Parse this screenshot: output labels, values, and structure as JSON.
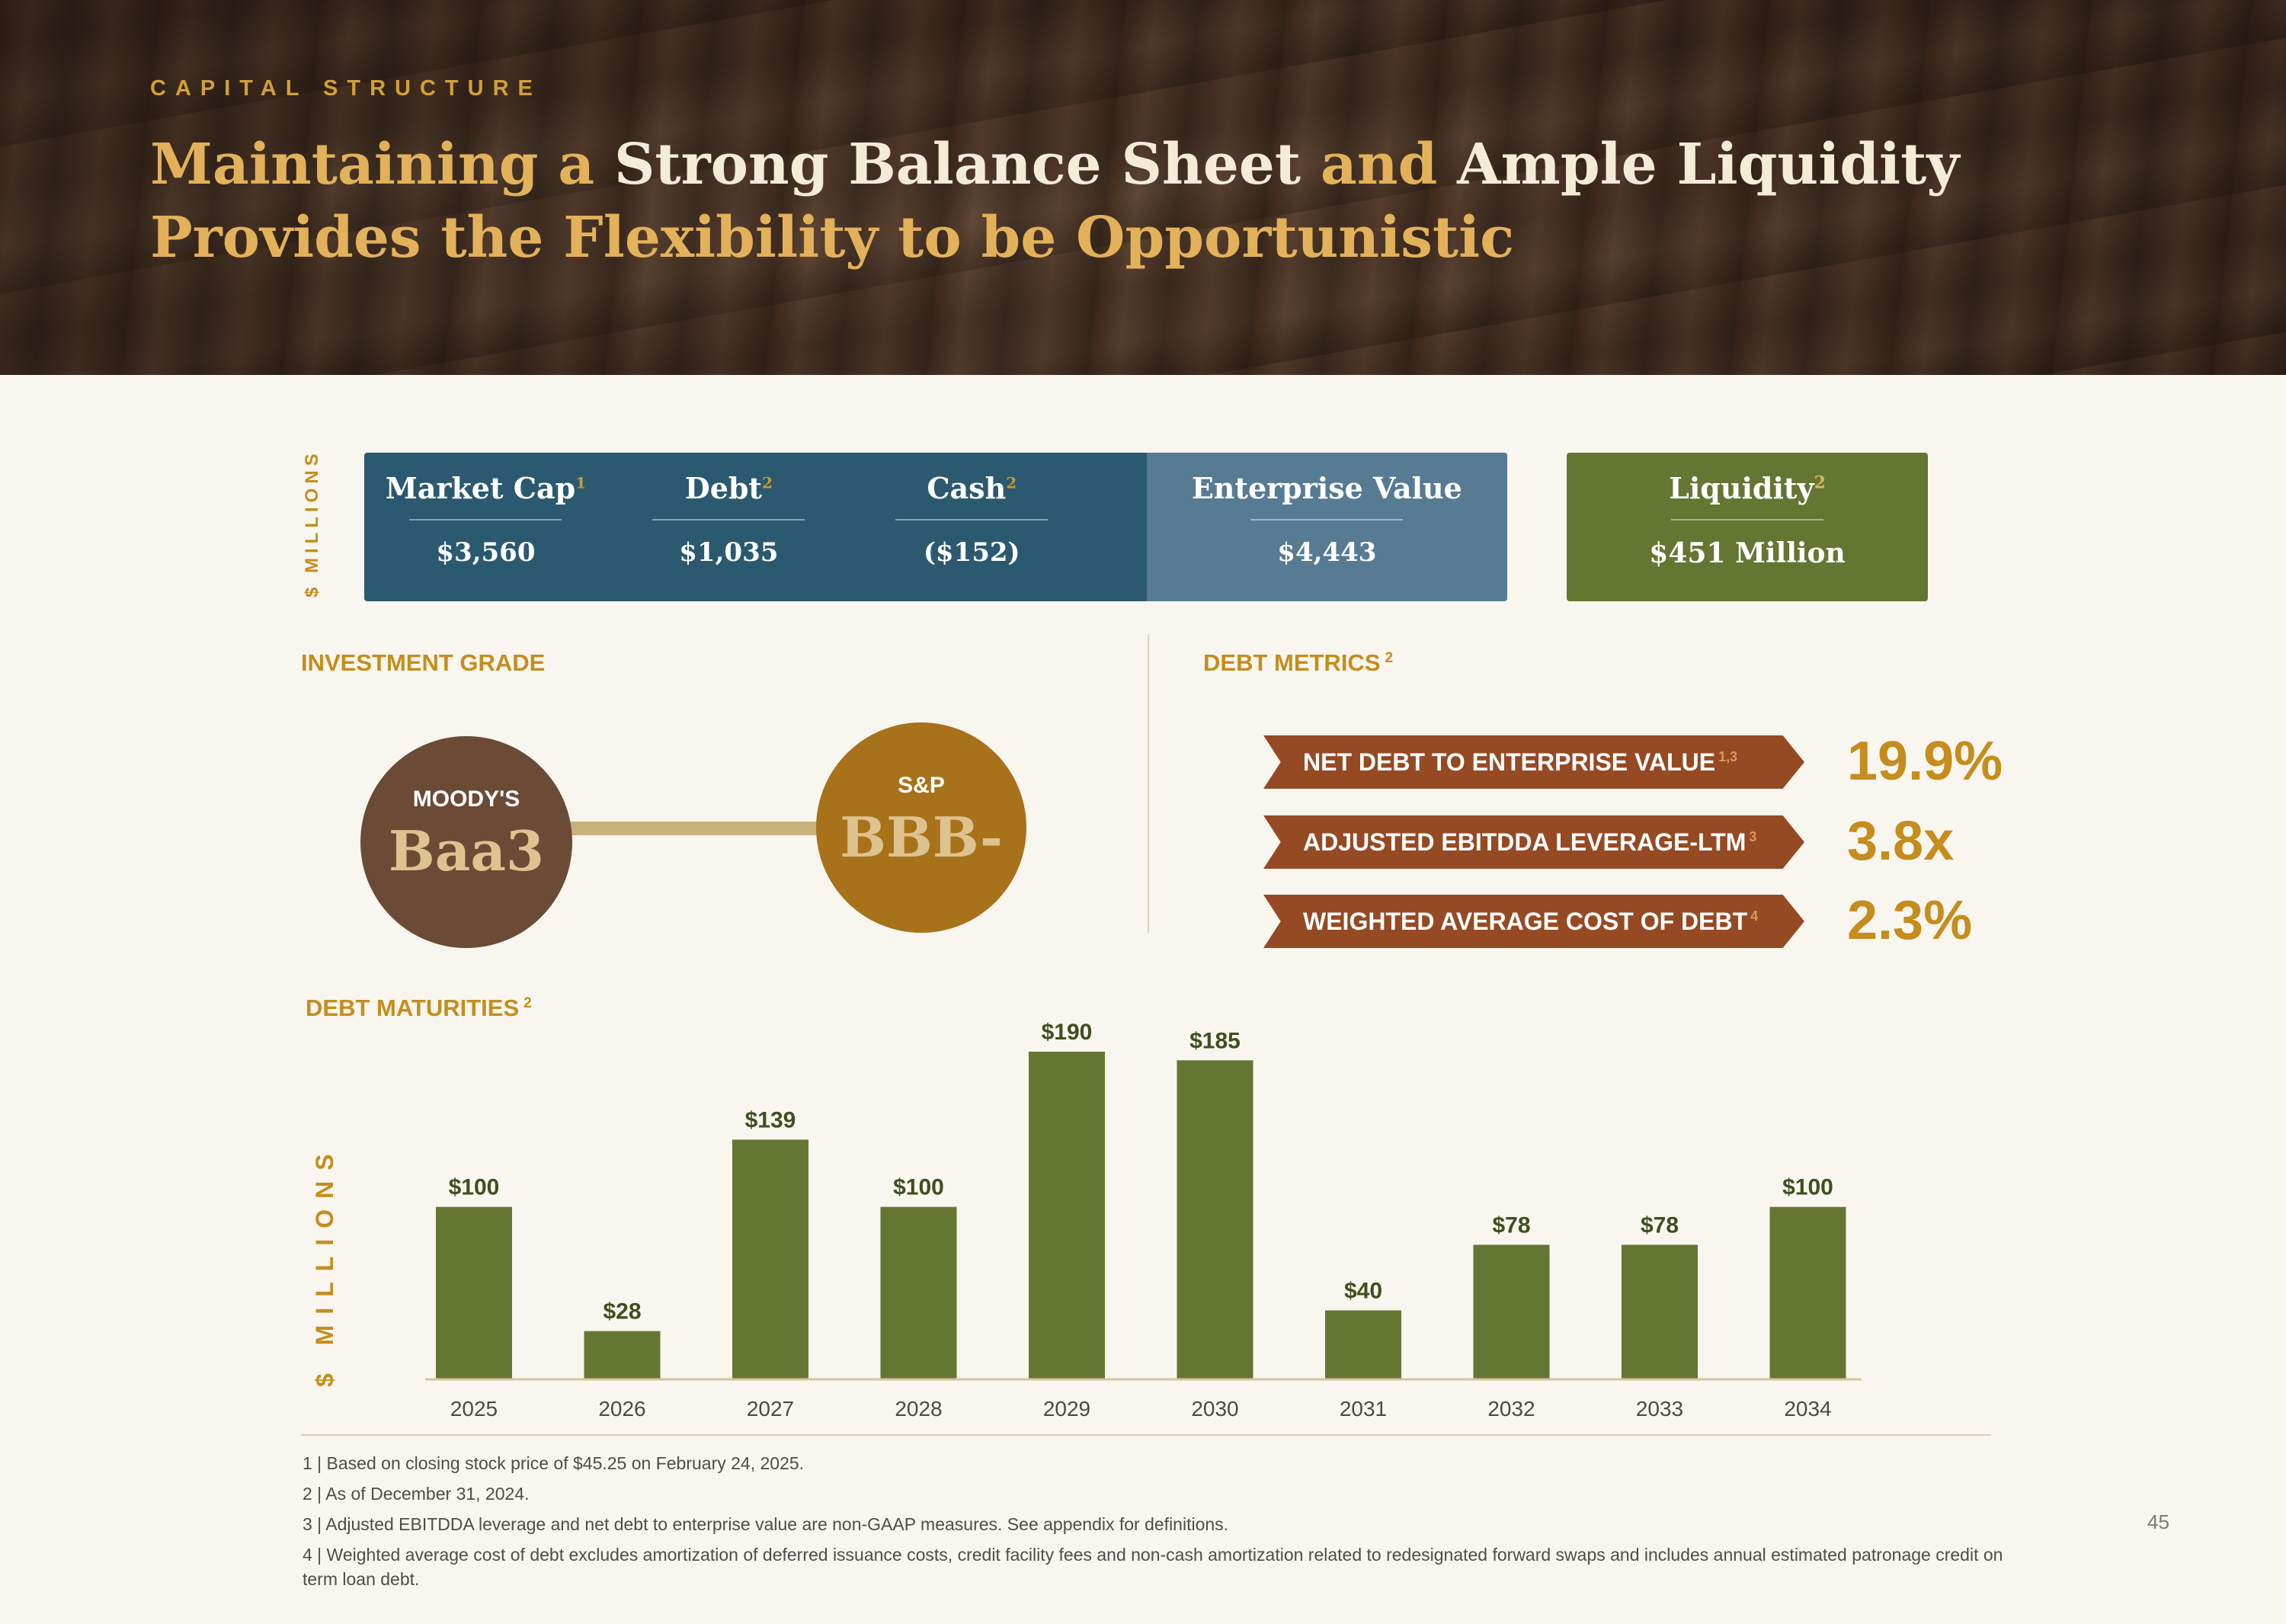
{
  "header": {
    "eyebrow": "CAPITAL STRUCTURE",
    "title_parts": [
      {
        "text": "Maintaining a ",
        "highlight": false
      },
      {
        "text": "Strong Balance Sheet",
        "highlight": true
      },
      {
        "text": " and ",
        "highlight": false
      },
      {
        "text": "Ample Liquidity",
        "highlight": true
      },
      {
        "text": " Provides the Flexibility to be Opportunistic",
        "highlight": false
      }
    ]
  },
  "metrics": {
    "unit_label": "$ MILLIONS",
    "items": [
      {
        "label": "Market Cap",
        "sup": "1",
        "value": "$3,560"
      },
      {
        "label": "Debt",
        "sup": "2",
        "value": "$1,035"
      },
      {
        "label": "Cash",
        "sup": "2",
        "value": "($152)"
      }
    ],
    "enterprise_value": {
      "label": "Enterprise Value",
      "value": "$4,443"
    },
    "liquidity": {
      "label": "Liquidity",
      "sup": "2",
      "value": "$451 Million"
    }
  },
  "investment_grade": {
    "title": "INVESTMENT GRADE",
    "moodys": {
      "name": "MOODY'S",
      "rating": "Baa3"
    },
    "sp": {
      "name": "S&P",
      "rating": "BBB-"
    }
  },
  "debt_metrics": {
    "title": "DEBT METRICS",
    "title_sup": "2",
    "items": [
      {
        "label": "NET DEBT TO ENTERPRISE VALUE",
        "sup": "1,3",
        "value": "19.9%"
      },
      {
        "label": "ADJUSTED EBITDDA LEVERAGE-LTM",
        "sup": "3",
        "value": "3.8x"
      },
      {
        "label": "WEIGHTED AVERAGE COST OF DEBT",
        "sup": "4",
        "value": "2.3%"
      }
    ]
  },
  "maturities": {
    "title": "DEBT MATURITIES",
    "title_sup": "2",
    "unit_label": "$ MILLIONS"
  },
  "chart_data": {
    "type": "bar",
    "categories": [
      "2025",
      "2026",
      "2027",
      "2028",
      "2029",
      "2030",
      "2031",
      "2032",
      "2033",
      "2034"
    ],
    "values": [
      100,
      28,
      139,
      100,
      190,
      185,
      40,
      78,
      78,
      100
    ],
    "value_labels": [
      "$100",
      "$28",
      "$139",
      "$100",
      "$190",
      "$185",
      "$40",
      "$78",
      "$78",
      "$100"
    ],
    "ylabel": "$ MILLIONS",
    "grid": false,
    "colors": {
      "bar": "#657633",
      "label": "#3f4f1f",
      "axis": "#d2c5a0",
      "tick": "#4a4a4a"
    }
  },
  "footnotes": [
    "1 | Based on closing stock price of $45.25 on February 24, 2025.",
    "2 | As of December 31, 2024.",
    "3 | Adjusted EBITDDA leverage and net debt to enterprise value are non-GAAP measures. See appendix for definitions.",
    "4 | Weighted average cost of debt excludes amortization of deferred issuance costs, credit facility fees and non-cash amortization related to redesignated forward swaps and includes annual estimated patronage credit on term loan debt."
  ],
  "page_number": "45",
  "colors": {
    "gold": "#c58d1e",
    "navy": "#2b5a70",
    "steel": "#587b94",
    "olive": "#657633",
    "rust": "#954a24",
    "brown": "#6b4a36",
    "amber": "#a8721a"
  }
}
